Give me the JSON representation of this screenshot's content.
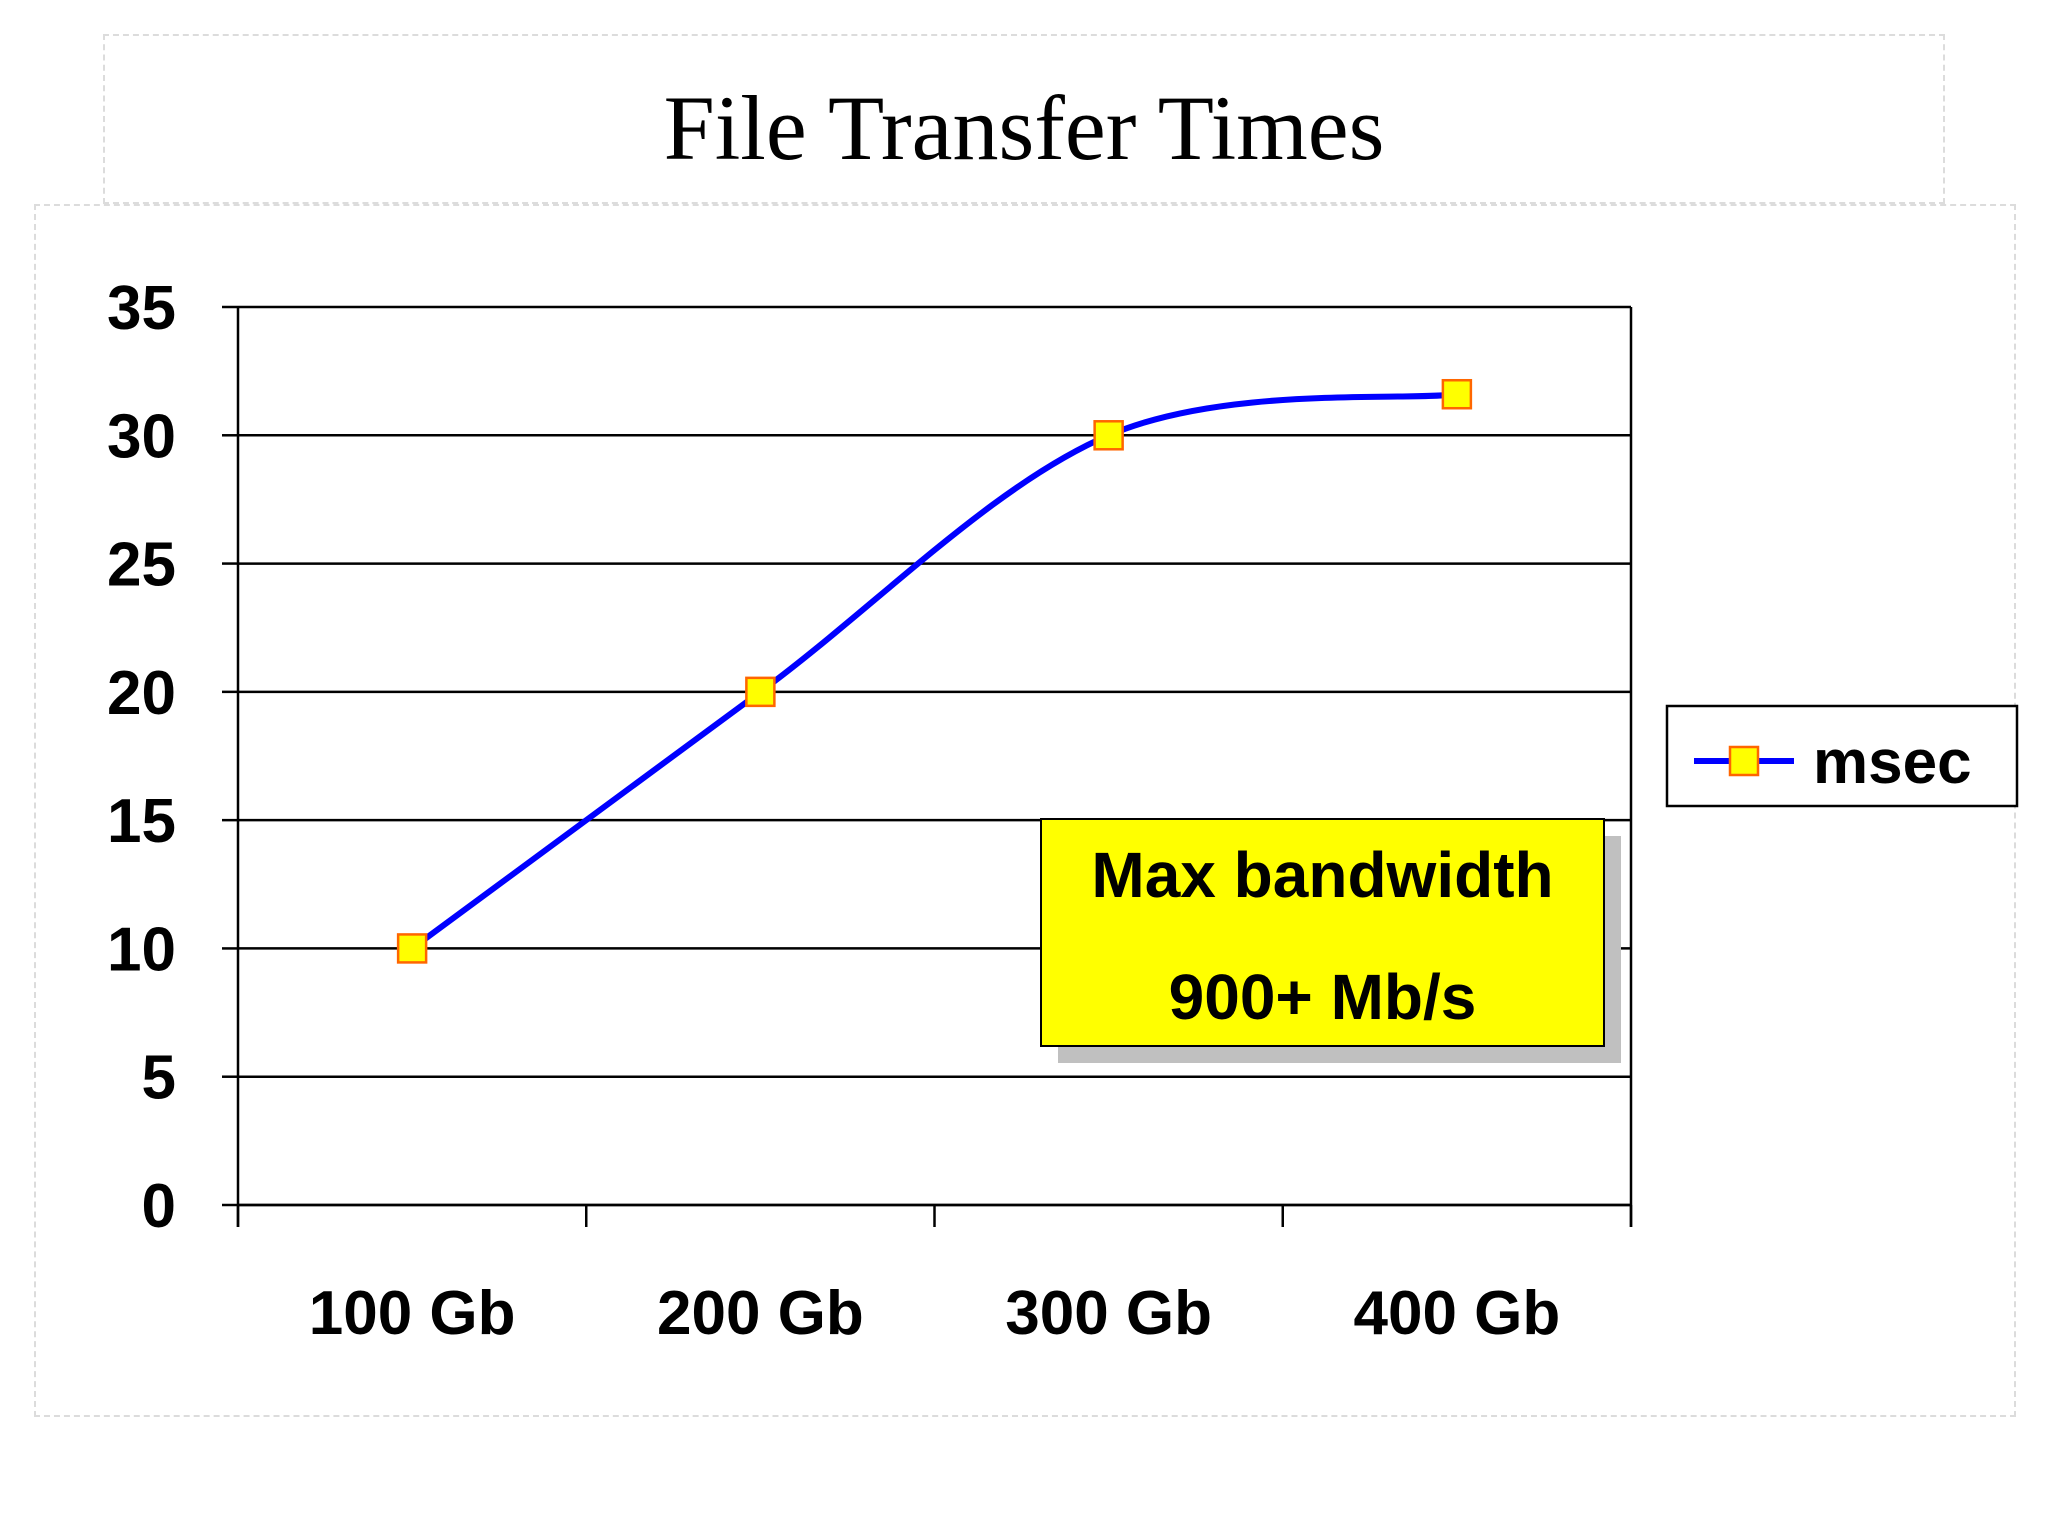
{
  "chart_data": {
    "type": "line",
    "title": "File Transfer Times",
    "categories": [
      "100 Gb",
      "200 Gb",
      "300 Gb",
      "400 Gb"
    ],
    "series": [
      {
        "name": "msec",
        "values": [
          10,
          20,
          30,
          31.6
        ],
        "line_color": "#0000ff",
        "marker": "square",
        "marker_fill": "#ffff00",
        "marker_stroke": "#ff6600"
      }
    ],
    "ylim": [
      0,
      35
    ],
    "yticks": [
      0,
      5,
      10,
      15,
      20,
      25,
      30,
      35
    ],
    "grid": "horizontal",
    "legend": {
      "placement": "right",
      "entries": [
        "msec"
      ]
    },
    "annotation": {
      "lines": [
        "Max bandwidth",
        "900+ Mb/s"
      ],
      "background": "#ffff00",
      "shadow": "#c0c0c0"
    },
    "xlabel": "",
    "ylabel": ""
  }
}
